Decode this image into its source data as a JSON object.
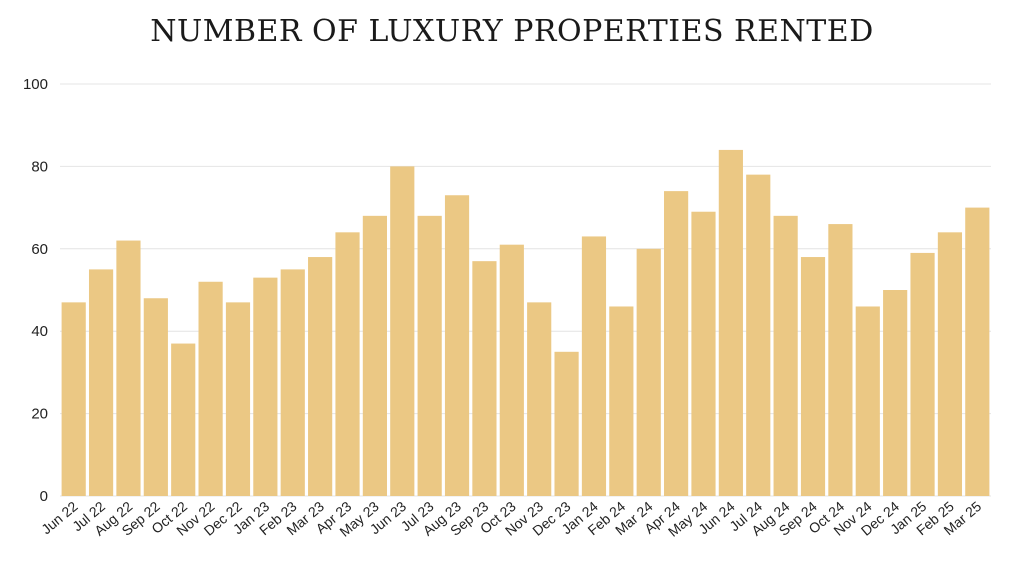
{
  "chart_data": {
    "type": "bar",
    "title": "NUMBER OF LUXURY PROPERTIES RENTED",
    "xlabel": "",
    "ylabel": "",
    "ylim": [
      0,
      100
    ],
    "yticks": [
      0,
      20,
      40,
      60,
      80,
      100
    ],
    "grid": true,
    "bar_color": "#ebc884",
    "categories": [
      "Jun 22",
      "Jul 22",
      "Aug 22",
      "Sep 22",
      "Oct 22",
      "Nov 22",
      "Dec 22",
      "Jan 23",
      "Feb 23",
      "Mar 23",
      "Apr 23",
      "May 23",
      "Jun 23",
      "Jul 23",
      "Aug 23",
      "Sep 23",
      "Oct 23",
      "Nov 23",
      "Dec 23",
      "Jan 24",
      "Feb 24",
      "Mar 24",
      "Apr 24",
      "May 24",
      "Jun 24",
      "Jul 24",
      "Aug 24",
      "Sep 24",
      "Oct 24",
      "Nov 24",
      "Dec 24",
      "Jan 25",
      "Feb 25",
      "Mar 25"
    ],
    "values": [
      47,
      55,
      62,
      48,
      37,
      52,
      47,
      53,
      55,
      58,
      64,
      68,
      80,
      68,
      73,
      57,
      61,
      47,
      35,
      63,
      46,
      60,
      74,
      69,
      84,
      78,
      68,
      58,
      66,
      46,
      50,
      59,
      64,
      70
    ]
  }
}
